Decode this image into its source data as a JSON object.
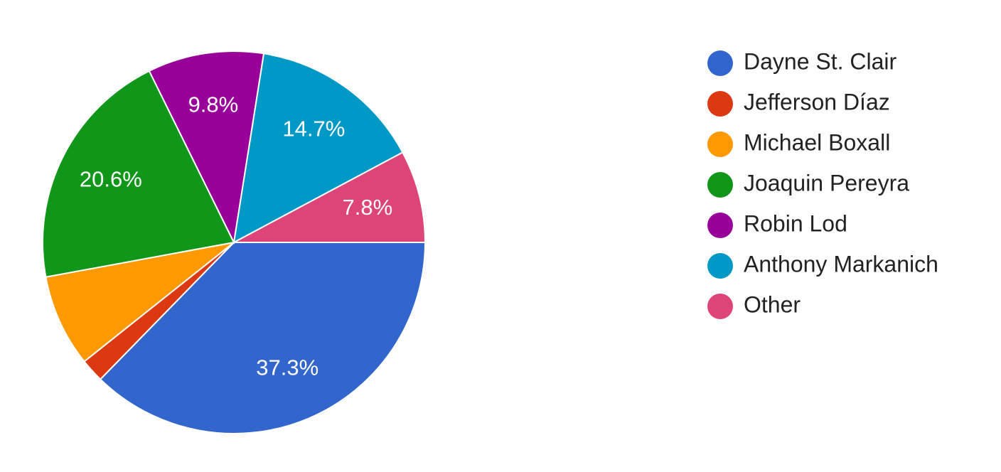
{
  "chart_data": {
    "type": "pie",
    "categories": [
      "Dayne St. Clair",
      "Jefferson Díaz",
      "Michael Boxall",
      "Joaquin Pereyra",
      "Robin Lod",
      "Anthony Markanich",
      "Other"
    ],
    "values": [
      37.3,
      2.0,
      7.8,
      20.6,
      9.8,
      14.7,
      7.8
    ],
    "value_labels": [
      "37.3%",
      null,
      null,
      "20.6%",
      "9.8%",
      "14.7%",
      "7.8%"
    ],
    "colors": [
      "#3366cc",
      "#dc3912",
      "#ff9900",
      "#109618",
      "#990099",
      "#0099c6",
      "#dd4477"
    ],
    "legend": "right"
  }
}
